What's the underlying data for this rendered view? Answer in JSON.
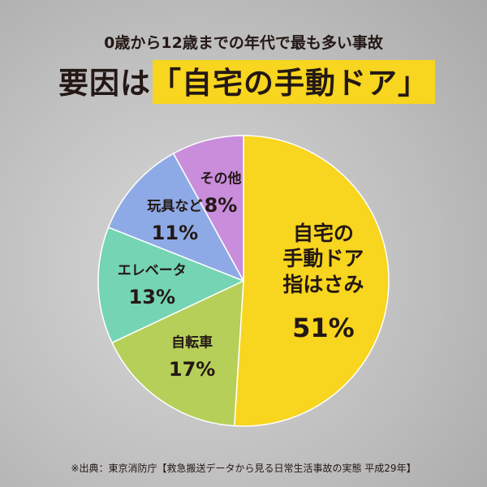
{
  "chart_data": {
    "type": "pie",
    "subtitle": "0歳から12歳までの年代で最も多い事故",
    "title": "要因は「自宅の手動ドア」",
    "categories": [
      "自宅の\n手動ドア\n指はさみ",
      "自転車",
      "エレベータ",
      "玩具など",
      "その他"
    ],
    "values": [
      51,
      17,
      13,
      11,
      8
    ],
    "value_labels": [
      "51%",
      "17%",
      "13%",
      "11%",
      "8%"
    ],
    "colors": [
      "#f8d51e",
      "#b6cf58",
      "#74d4b3",
      "#8eaae6",
      "#c98ddb"
    ],
    "source": "※出典：東京消防庁【救急搬送データから見る日常生活事故の実態 平成29年】"
  }
}
